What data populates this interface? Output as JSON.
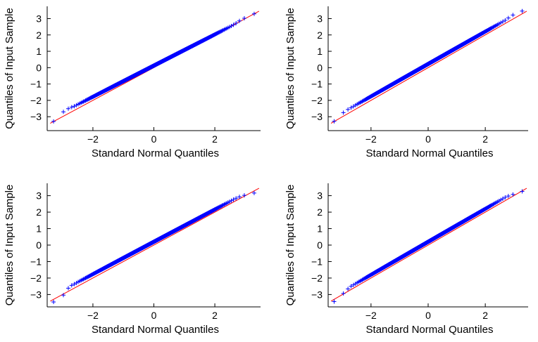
{
  "figure": {
    "colors": {
      "points": "#0000ff",
      "reference_line": "#ff0000",
      "axes": "#000000",
      "background": "#ffffff"
    },
    "marker": "plus"
  },
  "chart_data": [
    {
      "type": "scatter",
      "title": "",
      "xlabel": "Standard Normal Quantiles",
      "ylabel": "Quantiles of Input Sample",
      "xlim": [
        -3.5,
        3.5
      ],
      "ylim": [
        -3.85,
        3.75
      ],
      "xticks": [
        -2,
        0,
        2
      ],
      "yticks": [
        -3,
        -2,
        -1,
        0,
        1,
        2,
        3
      ],
      "xtick_labels": [
        "−2",
        "0",
        "2"
      ],
      "ytick_labels": [
        "−3",
        "−2",
        "−1",
        "0",
        "1",
        "2",
        "3"
      ],
      "grid": false,
      "legend": "none",
      "n_points": 1000,
      "reference_line": {
        "slope": 1.0,
        "intercept": 0.0
      },
      "tail_low": {
        "x": [
          -3.45,
          -3.3,
          -3.2,
          -3.1,
          -3.0,
          -2.9,
          -2.8,
          -2.7,
          -2.6
        ],
        "y": [
          -3.45,
          -3.3,
          -3.15,
          -2.95,
          -2.75,
          -2.6,
          -2.5,
          -2.42,
          -2.35
        ]
      },
      "tail_high": {
        "x": [
          2.6,
          2.8,
          3.0,
          3.15,
          3.3,
          3.45
        ],
        "y": [
          2.6,
          2.85,
          3.05,
          3.15,
          3.3,
          3.45
        ]
      },
      "gap": 0.1
    },
    {
      "type": "scatter",
      "title": "",
      "xlabel": "Standard Normal Quantiles",
      "ylabel": "Quantiles of Input Sample",
      "xlim": [
        -3.5,
        3.5
      ],
      "ylim": [
        -3.85,
        3.75
      ],
      "xticks": [
        -2,
        0,
        2
      ],
      "yticks": [
        -3,
        -2,
        -1,
        0,
        1,
        2,
        3
      ],
      "xtick_labels": [
        "−2",
        "0",
        "2"
      ],
      "ytick_labels": [
        "−3",
        "−2",
        "−1",
        "0",
        "1",
        "2",
        "3"
      ],
      "grid": false,
      "legend": "none",
      "n_points": 1000,
      "reference_line": {
        "slope": 1.0,
        "intercept": 0.0
      },
      "tail_low": {
        "x": [
          -3.4,
          -3.3,
          -3.2,
          -3.1,
          -3.0,
          -2.9,
          -2.8,
          -2.7
        ],
        "y": [
          -3.45,
          -3.3,
          -3.1,
          -2.95,
          -2.8,
          -2.65,
          -2.55,
          -2.45
        ]
      },
      "tail_high": {
        "x": [
          2.7,
          2.9,
          3.05,
          3.2,
          3.35
        ],
        "y": [
          2.9,
          3.15,
          3.3,
          3.4,
          3.5
        ]
      },
      "gap": 0.07
    },
    {
      "type": "scatter",
      "title": "",
      "xlabel": "Standard Normal Quantiles",
      "ylabel": "Quantiles of Input Sample",
      "xlim": [
        -3.5,
        3.5
      ],
      "ylim": [
        -3.75,
        3.75
      ],
      "xticks": [
        -2,
        0,
        2
      ],
      "yticks": [
        -3,
        -2,
        -1,
        0,
        1,
        2,
        3
      ],
      "xtick_labels": [
        "−2",
        "0",
        "2"
      ],
      "ytick_labels": [
        "−3",
        "−2",
        "−1",
        "0",
        "1",
        "2",
        "3"
      ],
      "grid": false,
      "legend": "none",
      "n_points": 1000,
      "reference_line": {
        "slope": 1.0,
        "intercept": 0.0
      },
      "tail_low": {
        "x": [
          -3.35,
          -3.25,
          -3.15,
          -3.05,
          -2.95,
          -2.85,
          -2.75,
          -2.65
        ],
        "y": [
          -3.6,
          -3.35,
          -3.3,
          -3.2,
          -3.0,
          -2.7,
          -2.5,
          -2.4
        ]
      },
      "tail_high": {
        "x": [
          2.7,
          2.9,
          3.05,
          3.2,
          3.35
        ],
        "y": [
          2.85,
          3.0,
          3.05,
          3.1,
          3.2
        ]
      },
      "gap": 0.07
    },
    {
      "type": "scatter",
      "title": "",
      "xlabel": "Standard Normal Quantiles",
      "ylabel": "Quantiles of Input Sample",
      "xlim": [
        -3.5,
        3.5
      ],
      "ylim": [
        -3.75,
        3.75
      ],
      "xticks": [
        -2,
        0,
        2
      ],
      "yticks": [
        -3,
        -2,
        -1,
        0,
        1,
        2,
        3
      ],
      "xtick_labels": [
        "−2",
        "0",
        "2"
      ],
      "ytick_labels": [
        "−3",
        "−2",
        "−1",
        "0",
        "1",
        "2",
        "3"
      ],
      "grid": false,
      "legend": "none",
      "n_points": 1000,
      "reference_line": {
        "slope": 1.0,
        "intercept": 0.0
      },
      "tail_low": {
        "x": [
          -3.35,
          -3.25,
          -3.1,
          -3.0,
          -2.9,
          -2.8,
          -2.7,
          -2.6
        ],
        "y": [
          -3.55,
          -3.35,
          -3.25,
          -3.0,
          -2.8,
          -2.65,
          -2.5,
          -2.4
        ]
      },
      "tail_high": {
        "x": [
          2.7,
          2.9,
          3.05,
          3.2,
          3.35
        ],
        "y": [
          2.9,
          3.05,
          3.1,
          3.2,
          3.3
        ]
      },
      "gap": 0.07
    }
  ]
}
